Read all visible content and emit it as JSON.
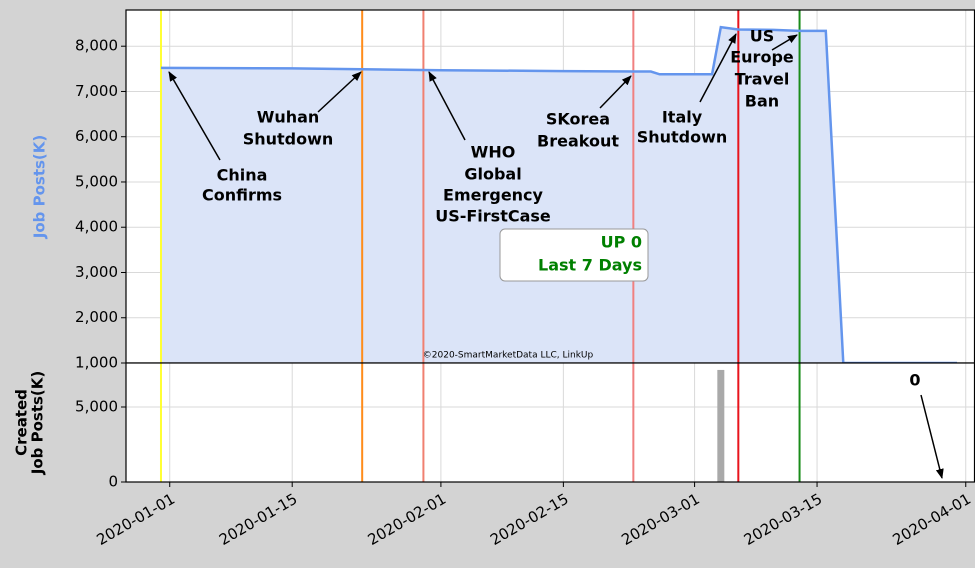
{
  "chart_data": [
    {
      "type": "area",
      "ylabel": "Job Posts(K)",
      "color": "#6495ed",
      "fill": "#dbe4f8",
      "x": [
        "2019-12-31",
        "2020-01-15",
        "2020-02-01",
        "2020-02-15",
        "2020-02-25",
        "2020-02-26",
        "2020-03-03",
        "2020-03-04",
        "2020-03-06",
        "2020-03-10",
        "2020-03-13",
        "2020-03-16",
        "2020-03-18",
        "2020-03-31"
      ],
      "values": [
        7520,
        7510,
        7470,
        7450,
        7440,
        7380,
        7380,
        8420,
        8370,
        8360,
        8340,
        8340,
        1000,
        1000
      ],
      "xlim": [
        "2019-12-27",
        "2020-04-02"
      ],
      "ylim": [
        1000,
        8800
      ],
      "yticks": [
        {
          "value": 1000,
          "label": "1,000"
        },
        {
          "value": 2000,
          "label": "2,000"
        },
        {
          "value": 3000,
          "label": "3,000"
        },
        {
          "value": 4000,
          "label": "4,000"
        },
        {
          "value": 5000,
          "label": "5,000"
        },
        {
          "value": 6000,
          "label": "6,000"
        },
        {
          "value": 7000,
          "label": "7,000"
        },
        {
          "value": 8000,
          "label": "8,000"
        }
      ],
      "grid": true,
      "vlines": [
        {
          "x": "2019-12-31",
          "color": "#ffff33"
        },
        {
          "x": "2020-01-23",
          "color": "#ff8c1a"
        },
        {
          "x": "2020-01-30",
          "color": "#f08070"
        },
        {
          "x": "2020-02-23",
          "color": "#f08080"
        },
        {
          "x": "2020-03-06",
          "color": "#e8141c"
        },
        {
          "x": "2020-03-13",
          "color": "#1a8c1a"
        }
      ],
      "annotations": [
        [
          "China",
          "Confirms"
        ],
        [
          "Wuhan",
          "Shutdown"
        ],
        [
          "WHO",
          "Global",
          "Emergency",
          "US-FirstCase"
        ],
        [
          "SKorea",
          "Breakout"
        ],
        [
          "Italy",
          "Shutdown"
        ],
        [
          "US",
          "Europe",
          "Travel",
          "Ban"
        ]
      ],
      "box": [
        "UP 0",
        "Last 7 Days"
      ],
      "watermark": "©2020-SmartMarketData LLC, LinkUp"
    },
    {
      "type": "bar",
      "ylabel": [
        "Created",
        "Job Posts(K)"
      ],
      "color": "#a9a9a9",
      "x": [
        "2020-03-04"
      ],
      "values": [
        7470
      ],
      "xlim": [
        "2019-12-27",
        "2020-04-02"
      ],
      "ylim": [
        0,
        7933
      ],
      "yticks": [
        0,
        {
          "value": 5000,
          "label": "5,000"
        }
      ],
      "grid": true,
      "xticks": [
        "2020-01-01",
        "2020-01-15",
        "2020-02-01",
        "2020-02-15",
        "2020-03-01",
        "2020-03-15",
        "2020-04-01"
      ],
      "vlines": [
        {
          "x": "2019-12-31",
          "color": "#ffff33"
        },
        {
          "x": "2020-01-23",
          "color": "#ff8c1a"
        },
        {
          "x": "2020-01-30",
          "color": "#f08070"
        },
        {
          "x": "2020-02-23",
          "color": "#f08080"
        },
        {
          "x": "2020-03-06",
          "color": "#e8141c"
        },
        {
          "x": "2020-03-13",
          "color": "#1a8c1a"
        }
      ],
      "annotations": [
        [
          "0"
        ]
      ]
    }
  ]
}
